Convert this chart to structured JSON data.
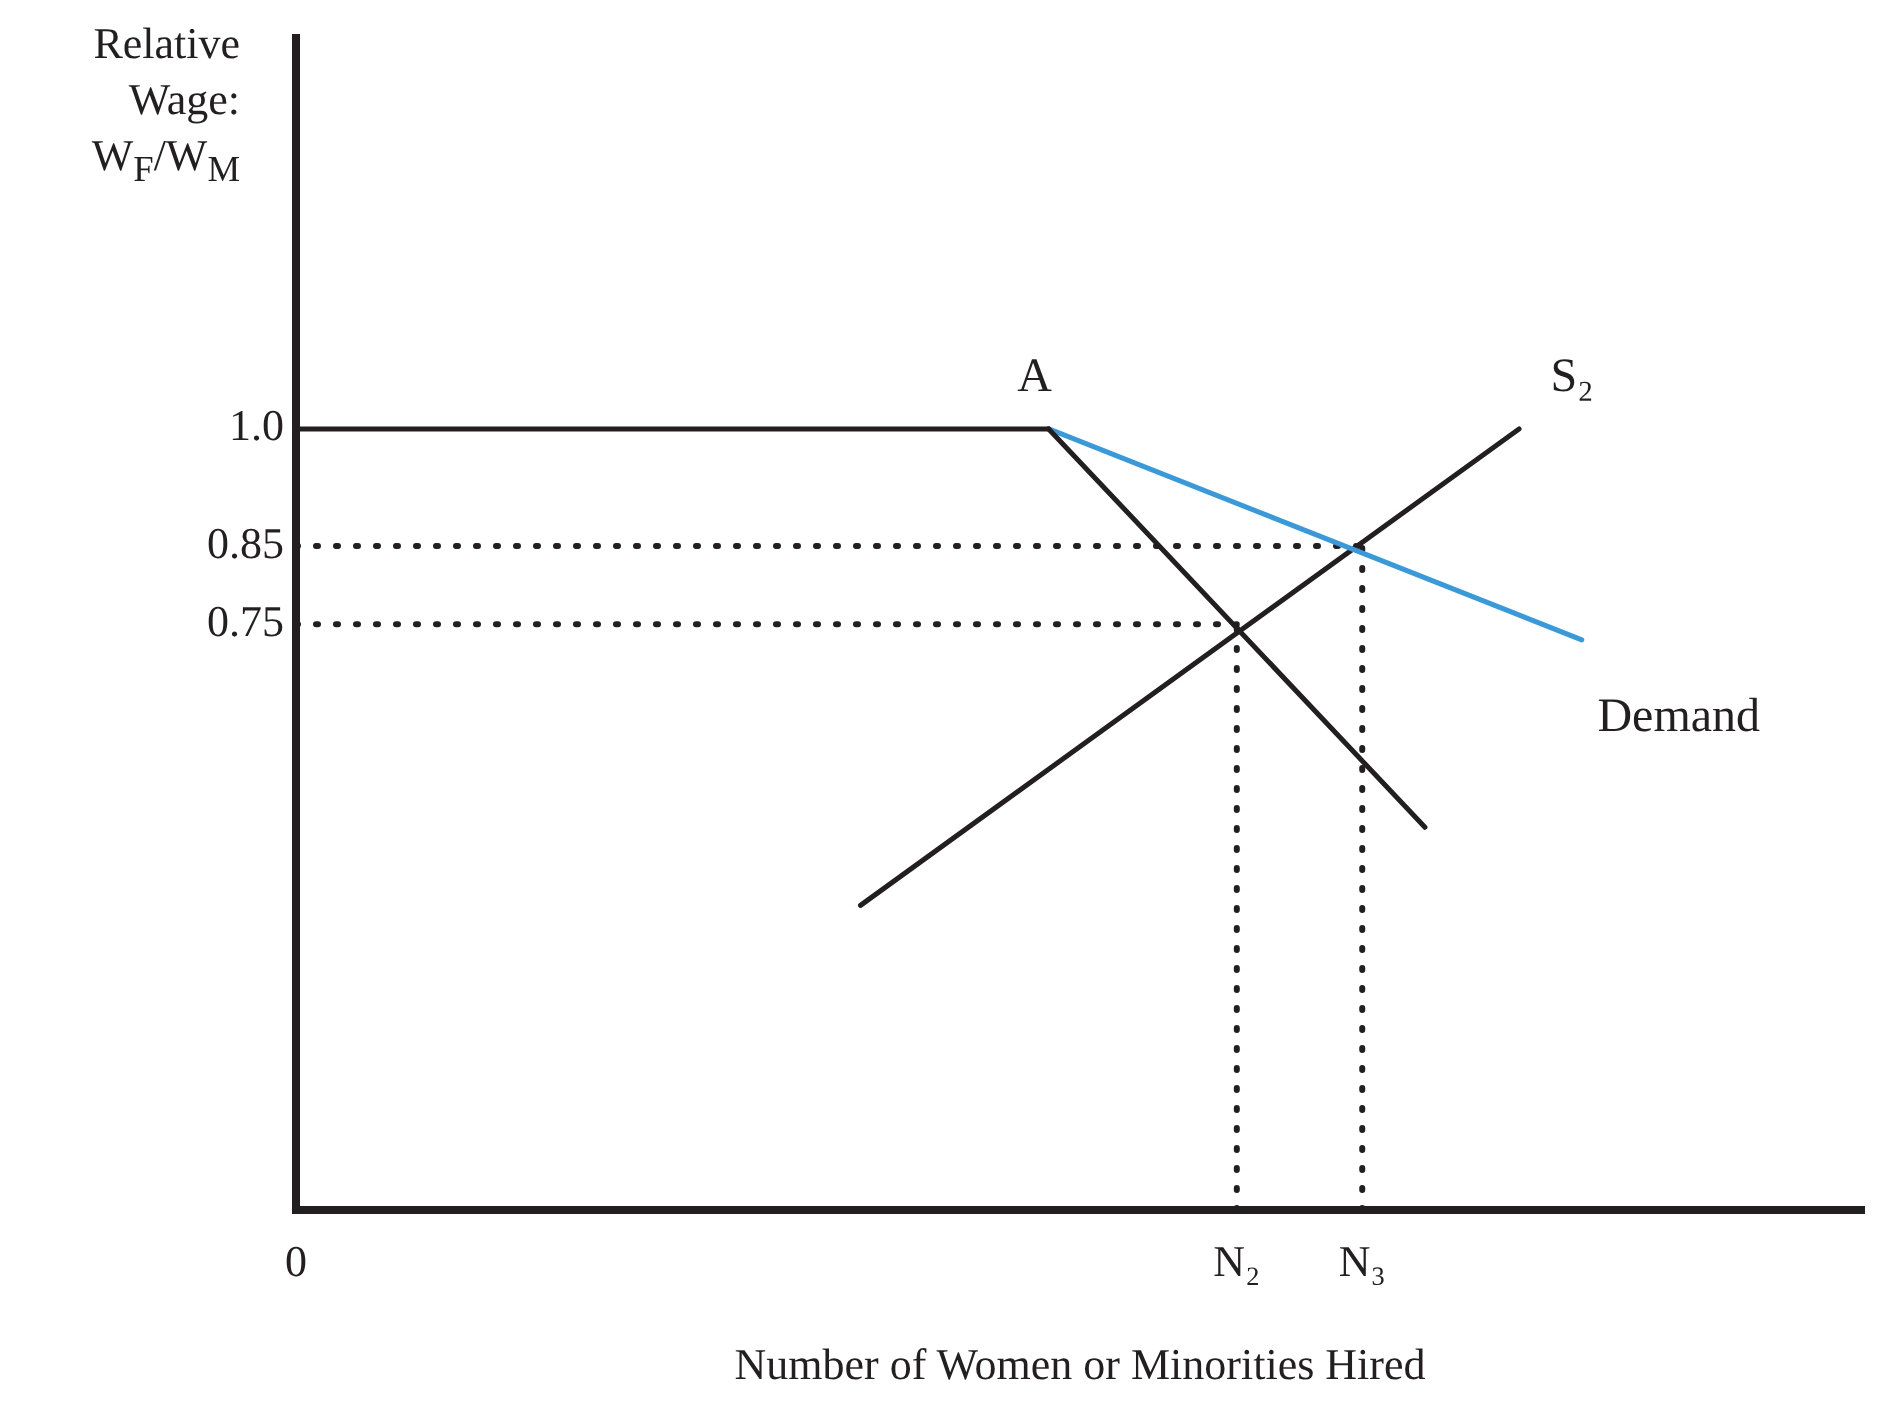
{
  "chart_data": {
    "type": "line",
    "xlabel": "Number of Women or Minorities Hired",
    "ylabel": "Relative Wage: W$_{F}$/W$_{M}$",
    "categories": [
      "0",
      null,
      null,
      null,
      null,
      null,
      null,
      null,
      null,
      null,
      null,
      null,
      null,
      null,
      null,
      null,
      null,
      null,
      null,
      null,
      null,
      null,
      null,
      null,
      null,
      null,
      null,
      null,
      null,
      null,
      "N₂",
      null,
      null,
      null,
      "N₃",
      null,
      null,
      null,
      null,
      null,
      null,
      null,
      null,
      null,
      null,
      null,
      null,
      null,
      null,
      null,
      null
    ],
    "ylim": [
      0,
      1.5
    ],
    "yticks": [
      {
        "value": 0.75,
        "label": "0.75"
      },
      {
        "value": 0.85,
        "label": "0.85"
      },
      {
        "value": 1,
        "label": "1.0"
      }
    ],
    "grid": false,
    "legend": false,
    "marker": "none",
    "series": [
      {
        "color": "#231f20",
        "values": [
          1,
          null,
          null,
          null,
          null,
          null,
          null,
          null,
          null,
          null,
          null,
          null,
          null,
          null,
          null,
          null,
          null,
          null,
          null,
          null,
          null,
          null,
          null,
          null,
          1,
          null,
          null,
          null,
          null,
          null,
          null,
          null,
          null,
          null,
          null,
          null,
          null,
          null,
          null,
          null,
          null,
          null,
          null,
          null,
          null,
          null,
          null,
          null,
          null,
          null,
          null
        ]
      },
      {
        "color": "#231f20",
        "values": [
          null,
          null,
          null,
          null,
          null,
          null,
          null,
          null,
          null,
          null,
          null,
          null,
          null,
          null,
          null,
          null,
          null,
          null,
          null,
          null,
          null,
          null,
          null,
          null,
          1,
          null,
          null,
          null,
          null,
          null,
          null,
          null,
          null,
          null,
          null,
          null,
          0.49,
          null,
          null,
          null,
          null,
          null,
          null,
          null,
          null,
          null,
          null,
          null,
          null,
          null,
          null
        ]
      },
      {
        "color": "#3a9ad9",
        "values": [
          null,
          null,
          null,
          null,
          null,
          null,
          null,
          null,
          null,
          null,
          null,
          null,
          null,
          null,
          null,
          null,
          null,
          null,
          null,
          null,
          null,
          null,
          null,
          null,
          1,
          null,
          null,
          null,
          null,
          null,
          null,
          null,
          null,
          null,
          null,
          null,
          null,
          null,
          null,
          null,
          null,
          0.73,
          null,
          null,
          null,
          null,
          null,
          null,
          null,
          null,
          null
        ]
      },
      {
        "color": "#231f20",
        "values": [
          null,
          null,
          null,
          null,
          null,
          null,
          null,
          null,
          null,
          null,
          null,
          null,
          null,
          null,
          null,
          null,
          null,
          null,
          0.39,
          null,
          null,
          null,
          null,
          null,
          null,
          null,
          null,
          null,
          null,
          null,
          null,
          null,
          null,
          null,
          null,
          null,
          null,
          null,
          null,
          1,
          null,
          null,
          null,
          null,
          null,
          null,
          null,
          null,
          null,
          null,
          null
        ]
      },
      {
        "color": "#231f20",
        "line_style": "dotted",
        "values": [
          0.85,
          null,
          null,
          null,
          null,
          null,
          null,
          null,
          null,
          null,
          null,
          null,
          null,
          null,
          null,
          null,
          null,
          null,
          null,
          null,
          null,
          null,
          null,
          null,
          null,
          null,
          null,
          null,
          null,
          null,
          null,
          null,
          null,
          null,
          0.85,
          null,
          null,
          null,
          null,
          null,
          null,
          null,
          null,
          null,
          null,
          null,
          null,
          null,
          null,
          null,
          null
        ]
      },
      {
        "color": "#231f20",
        "line_style": "dotted",
        "values": [
          0.75,
          null,
          null,
          null,
          null,
          null,
          null,
          null,
          null,
          null,
          null,
          null,
          null,
          null,
          null,
          null,
          null,
          null,
          null,
          null,
          null,
          null,
          null,
          null,
          null,
          null,
          null,
          null,
          null,
          null,
          0.75,
          null,
          null,
          null,
          null,
          null,
          null,
          null,
          null,
          null,
          null,
          null,
          null,
          null,
          null,
          null,
          null,
          null,
          null,
          null,
          null
        ]
      },
      {
        "color": "#231f20",
        "line_style": "dotted",
        "x": [
          "N₂",
          "N₂"
        ],
        "values": [
          0,
          0.75
        ]
      },
      {
        "color": "#231f20",
        "line_style": "dotted",
        "x": [
          "N₃",
          "N₃"
        ],
        "values": [
          0,
          0.85
        ]
      }
    ],
    "annotations": [
      "A",
      "S₂",
      "Demand"
    ]
  }
}
